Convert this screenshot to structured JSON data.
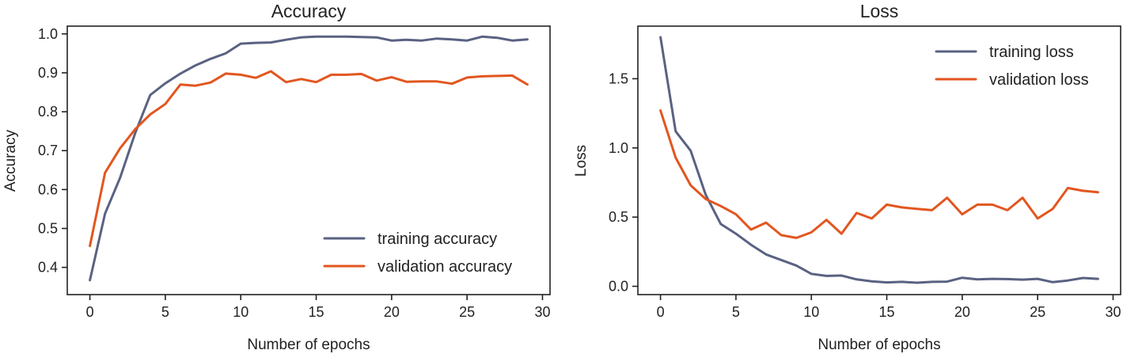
{
  "colors": {
    "training": "#5a6282",
    "validation": "#e2561f"
  },
  "chart_data": [
    {
      "type": "line",
      "title": "Accuracy",
      "xlabel": "Number of epochs",
      "ylabel": "Accuracy",
      "xlim": [
        -1.5,
        30.5
      ],
      "ylim": [
        0.33,
        1.02
      ],
      "xticks": [
        0,
        5,
        10,
        15,
        20,
        25,
        30
      ],
      "yticks": [
        0.4,
        0.5,
        0.6,
        0.7,
        0.8,
        0.9,
        1.0
      ],
      "legend_position": "lower-right",
      "x": [
        0,
        1,
        2,
        3,
        4,
        5,
        6,
        7,
        8,
        9,
        10,
        11,
        12,
        13,
        14,
        15,
        16,
        17,
        18,
        19,
        20,
        21,
        22,
        23,
        24,
        25,
        26,
        27,
        28,
        29
      ],
      "series": [
        {
          "name": "training accuracy",
          "color_key": "training",
          "values": [
            0.367,
            0.538,
            0.63,
            0.745,
            0.843,
            0.873,
            0.898,
            0.919,
            0.936,
            0.95,
            0.975,
            0.977,
            0.978,
            0.985,
            0.991,
            0.993,
            0.993,
            0.993,
            0.992,
            0.991,
            0.983,
            0.985,
            0.983,
            0.988,
            0.986,
            0.983,
            0.993,
            0.99,
            0.983,
            0.986
          ]
        },
        {
          "name": "validation accuracy",
          "color_key": "validation",
          "values": [
            0.455,
            0.643,
            0.706,
            0.755,
            0.793,
            0.82,
            0.87,
            0.867,
            0.875,
            0.898,
            0.895,
            0.887,
            0.904,
            0.876,
            0.884,
            0.876,
            0.895,
            0.895,
            0.897,
            0.88,
            0.889,
            0.877,
            0.878,
            0.878,
            0.872,
            0.888,
            0.891,
            0.892,
            0.893,
            0.87
          ]
        }
      ]
    },
    {
      "type": "line",
      "title": "Loss",
      "xlabel": "Number of epochs",
      "ylabel": "Loss",
      "xlim": [
        -1.5,
        30.5
      ],
      "ylim": [
        -0.06,
        1.88
      ],
      "xticks": [
        0,
        5,
        10,
        15,
        20,
        25,
        30
      ],
      "yticks": [
        0.0,
        0.5,
        1.0,
        1.5
      ],
      "ytick_labels": [
        "0.0",
        "0.5",
        "1.0",
        "1.5"
      ],
      "legend_position": "top-right",
      "x": [
        0,
        1,
        2,
        3,
        4,
        5,
        6,
        7,
        8,
        9,
        10,
        11,
        12,
        13,
        14,
        15,
        16,
        17,
        18,
        19,
        20,
        21,
        22,
        23,
        24,
        25,
        26,
        27,
        28,
        29
      ],
      "series": [
        {
          "name": "training loss",
          "color_key": "training",
          "values": [
            1.8,
            1.12,
            0.98,
            0.66,
            0.45,
            0.38,
            0.3,
            0.23,
            0.19,
            0.15,
            0.09,
            0.075,
            0.078,
            0.05,
            0.036,
            0.028,
            0.032,
            0.026,
            0.032,
            0.034,
            0.062,
            0.05,
            0.054,
            0.052,
            0.048,
            0.054,
            0.03,
            0.042,
            0.06,
            0.054
          ]
        },
        {
          "name": "validation loss",
          "color_key": "validation",
          "values": [
            1.27,
            0.93,
            0.73,
            0.63,
            0.58,
            0.52,
            0.41,
            0.46,
            0.37,
            0.35,
            0.39,
            0.48,
            0.38,
            0.53,
            0.49,
            0.59,
            0.57,
            0.56,
            0.55,
            0.64,
            0.52,
            0.59,
            0.59,
            0.55,
            0.64,
            0.49,
            0.56,
            0.71,
            0.69,
            0.68
          ]
        }
      ]
    }
  ]
}
